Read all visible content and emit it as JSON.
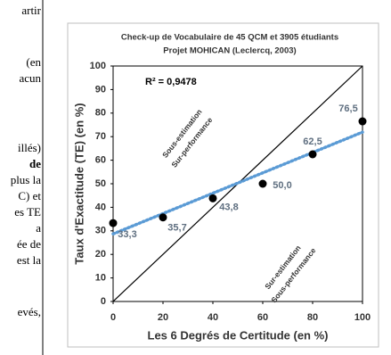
{
  "document": {
    "left_column": [
      "artir",
      "(en",
      "acun",
      "illés)",
      "de",
      "plus la",
      "C) et",
      "es TE",
      "a",
      "ée de",
      "est la",
      "evés,"
    ]
  },
  "chart_data": {
    "type": "scatter",
    "title": "Check-up de Vocabulaire de 45 QCM et 3905 étudiants",
    "subtitle": "Projet MOHICAN (Leclercq, 2003)",
    "x_label": "Les 6 Degrés de Certitude (en %)",
    "y_label": "Taux d'Exactitude (TE) (en %)",
    "x": [
      0,
      20,
      40,
      60,
      80,
      100
    ],
    "series": [
      {
        "name": "TE",
        "color": "#000000",
        "values": [
          33.3,
          35.7,
          43.8,
          50.0,
          62.5,
          76.5
        ],
        "value_labels": [
          "33,3",
          "35,7",
          "43,8",
          "50,0",
          "62,5",
          "76,5"
        ]
      }
    ],
    "trendline": "linear",
    "trendline_color": "#5b9bd5",
    "r_squared": "R² = 0,9478",
    "diagonal": true,
    "annotations": [
      [
        "Sous-estimation",
        "Sur-performance"
      ],
      [
        "Sur-estimation",
        "Sous-performance"
      ]
    ],
    "xlim": [
      0,
      100
    ],
    "ylim": [
      0,
      100
    ],
    "xticks": [
      0,
      20,
      40,
      60,
      80,
      100
    ],
    "yticks": [
      0,
      10,
      20,
      30,
      40,
      50,
      60,
      70,
      80,
      90,
      100
    ],
    "grid": false
  }
}
